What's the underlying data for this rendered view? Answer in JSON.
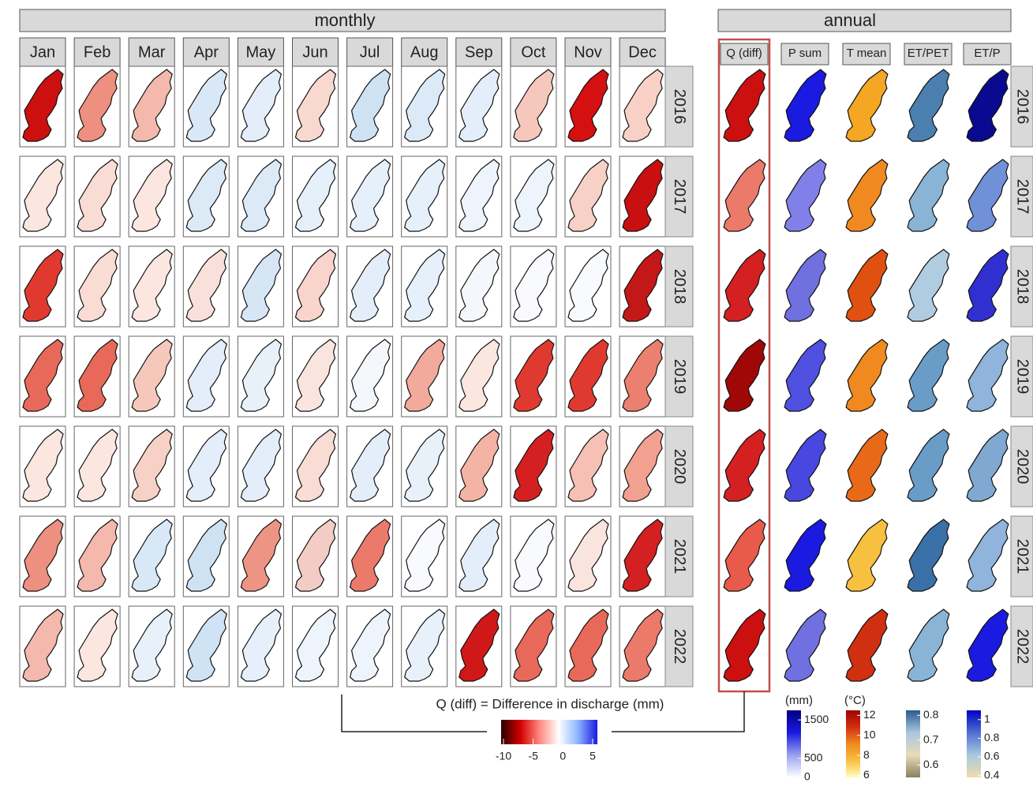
{
  "monthly": {
    "title": "monthly",
    "months": [
      "Jan",
      "Feb",
      "Mar",
      "Apr",
      "May",
      "Jun",
      "Jul",
      "Aug",
      "Sep",
      "Oct",
      "Nov",
      "Dec"
    ],
    "years": [
      "2016",
      "2017",
      "2018",
      "2019",
      "2020",
      "2021",
      "2022"
    ],
    "colors": [
      [
        "#cc1010",
        "#ee9080",
        "#f4b8ac",
        "#d8e8f6",
        "#e3eefa",
        "#f9d8d0",
        "#cfe2f4",
        "#dce9f6",
        "#e3eefa",
        "#f6c8bc",
        "#d41010",
        "#f8d0c6"
      ],
      [
        "#fbe6e0",
        "#f9dcd4",
        "#fbe6e0",
        "#dce9f6",
        "#dce9f6",
        "#e6f0fa",
        "#e6f0fa",
        "#e6f0fa",
        "#eef4fb",
        "#eef4fb",
        "#f7d0c6",
        "#c81010"
      ],
      [
        "#e03a30",
        "#f9dcd4",
        "#fbe6e0",
        "#fae0da",
        "#d6e6f5",
        "#f8d4cc",
        "#e3eefa",
        "#e6f0fa",
        "#f4f8fc",
        "#f8fafd",
        "#f8fafd",
        "#c41818"
      ],
      [
        "#e8695a",
        "#e8695a",
        "#f6c8bc",
        "#e3eefa",
        "#e8f1fa",
        "#fae4de",
        "#f4f8fc",
        "#f2aa9c",
        "#fbe6e0",
        "#e03a30",
        "#e03a30",
        "#ec8070"
      ],
      [
        "#fbe6e0",
        "#fbe6e0",
        "#f7d0c6",
        "#e3eefa",
        "#e3eefa",
        "#f9dcd4",
        "#e3eefa",
        "#e8f1fa",
        "#f3b4a6",
        "#d42020",
        "#f6c0b4",
        "#f2a090"
      ],
      [
        "#ee9080",
        "#f4b8ac",
        "#d8e8f6",
        "#cfe2f4",
        "#ee9484",
        "#f4ccc6",
        "#ec7a6a",
        "#f8fafd",
        "#e3eefa",
        "#f8fafd",
        "#fae4de",
        "#d42020"
      ],
      [
        "#f4b8ac",
        "#fbe6e0",
        "#e8f1fa",
        "#d0e3f4",
        "#e6f0fa",
        "#eef4fb",
        "#eef4fb",
        "#e8f1fa",
        "#d01818",
        "#e8695a",
        "#e8695a",
        "#ec7a6a"
      ]
    ]
  },
  "annual": {
    "title": "annual",
    "variables": [
      "Q (diff)",
      "P sum",
      "T mean",
      "ET/PET",
      "ET/P"
    ],
    "years": [
      "2016",
      "2017",
      "2018",
      "2019",
      "2020",
      "2021",
      "2022"
    ],
    "colors": [
      [
        "#cc1010",
        "#1a1ae0",
        "#f5a623",
        "#4a7fb0",
        "#0a0a90"
      ],
      [
        "#ec7a6a",
        "#8080e8",
        "#f08a20",
        "#8ab4d6",
        "#7090d8"
      ],
      [
        "#d42020",
        "#7070e0",
        "#e05010",
        "#b0cce0",
        "#3030d0"
      ],
      [
        "#a00808",
        "#5050e0",
        "#f08a20",
        "#6a9cc8",
        "#90b4dc"
      ],
      [
        "#d42020",
        "#4848e0",
        "#e86a18",
        "#6a9cc8",
        "#80a8d0"
      ],
      [
        "#e85a4a",
        "#1a1ae0",
        "#f8c040",
        "#3a70a8",
        "#90b4dc"
      ],
      [
        "#cc1010",
        "#7070e0",
        "#d03010",
        "#8ab4d6",
        "#1a1ae0"
      ]
    ]
  },
  "legend": {
    "caption": "Q (diff) = Difference in discharge (mm)",
    "colors": [
      "#2a0000",
      "#d00000",
      "#ff8a80",
      "#ffffff",
      "#8ab4ff",
      "#1a1ae0"
    ],
    "lim": [
      -10.4,
      5.8
    ],
    "ticks": [
      -10,
      -5,
      0,
      5
    ]
  },
  "annual_legends": [
    {
      "unit": "(mm)",
      "colors": [
        "#ffffff",
        "#9aa0f0",
        "#1a1ae0",
        "#000080"
      ],
      "lim": [
        0,
        1750
      ],
      "ticks": [
        0,
        500,
        1500
      ]
    },
    {
      "unit": "(°C)",
      "colors": [
        "#ffffc0",
        "#f8c040",
        "#f08a20",
        "#d03010",
        "#a00000"
      ],
      "lim": [
        5.8,
        12.5
      ],
      "ticks": [
        6,
        8,
        10,
        12
      ]
    },
    {
      "colors": [
        "#8a8060",
        "#e8dcb8",
        "#a8c8e0",
        "#2a5a90"
      ],
      "lim": [
        0.55,
        0.82
      ],
      "ticks": [
        0.6,
        0.7,
        0.8
      ]
    },
    {
      "colors": [
        "#f0dca8",
        "#a8c8e0",
        "#5070d0",
        "#0000c0"
      ],
      "lim": [
        0.38,
        1.1
      ],
      "ticks": [
        0.4,
        0.6,
        0.8,
        1
      ]
    }
  ]
}
